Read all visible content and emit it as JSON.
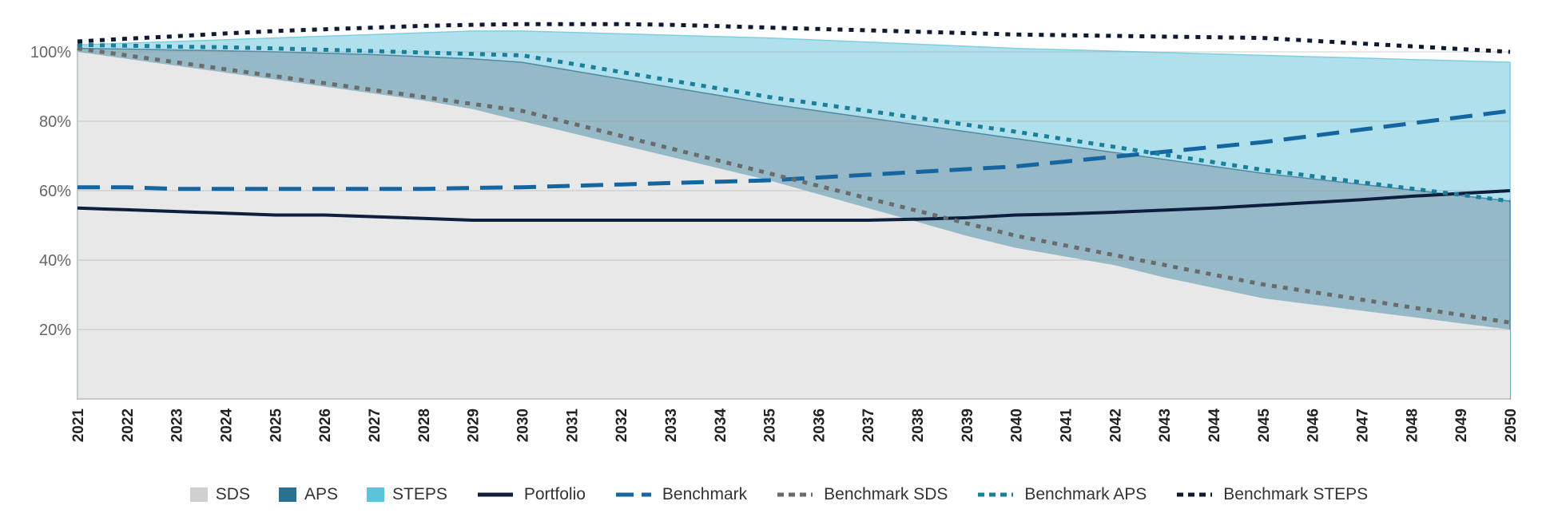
{
  "chart_data": {
    "type": "area",
    "title": "",
    "xlabel": "",
    "ylabel": "",
    "ylim": [
      0,
      110
    ],
    "grid": true,
    "legend_position": "bottom",
    "x": [
      2021,
      2022,
      2023,
      2024,
      2025,
      2026,
      2027,
      2028,
      2029,
      2030,
      2031,
      2032,
      2033,
      2034,
      2035,
      2036,
      2037,
      2038,
      2039,
      2040,
      2041,
      2042,
      2043,
      2044,
      2045,
      2046,
      2047,
      2048,
      2049,
      2050
    ],
    "x_tick_labels": [
      "2021",
      "2022",
      "2023",
      "2024",
      "2025",
      "2026",
      "2027",
      "2028",
      "2029",
      "2030",
      "2031",
      "2032",
      "2033",
      "2034",
      "2035",
      "2036",
      "2037",
      "2038",
      "2039",
      "2040",
      "2041",
      "2042",
      "2043",
      "2044",
      "2045",
      "2046",
      "2047",
      "2048",
      "2049",
      "2050"
    ],
    "y_ticks": [
      20,
      40,
      60,
      80,
      100
    ],
    "y_tick_labels": [
      "20%",
      "40%",
      "60%",
      "80%",
      "100%"
    ],
    "areas": [
      {
        "name": "STEPS",
        "color": "#b0e0ec",
        "swatch": "#5bc4d8",
        "values": [
          102,
          102.5,
          103,
          103.5,
          104,
          104.5,
          105,
          105.5,
          106,
          106,
          105.6,
          105.2,
          104.8,
          104.4,
          104,
          103.4,
          102.8,
          102.2,
          101.6,
          101,
          100.6,
          100.2,
          99.8,
          99.4,
          99,
          98.6,
          98.2,
          97.8,
          97.4,
          97
        ]
      },
      {
        "name": "APS",
        "color": "#96b9c8",
        "swatch": "#2a7090",
        "values": [
          101,
          100.8,
          100.5,
          100.3,
          100,
          99.6,
          99.2,
          98.6,
          98,
          97,
          94.6,
          92.2,
          89.8,
          87.4,
          85,
          83,
          81,
          79,
          77,
          75,
          73,
          71,
          69,
          67,
          65,
          63.4,
          61.8,
          60.2,
          58.6,
          57
        ]
      },
      {
        "name": "SDS",
        "color": "#e8e8e8",
        "swatch": "#d0d0d0",
        "values": [
          100,
          98,
          96,
          94,
          92,
          90,
          88,
          86,
          83.5,
          80,
          76.6,
          73.2,
          69.8,
          66.4,
          63,
          59,
          55,
          51,
          47,
          43.5,
          41,
          38.5,
          35,
          32,
          29,
          27.2,
          25.4,
          23.6,
          21.8,
          20
        ]
      }
    ],
    "lines": [
      {
        "name": "Portfolio",
        "color": "#0d1f3c",
        "dash": "solid",
        "values": [
          55,
          54.5,
          54,
          53.5,
          53,
          53,
          52.5,
          52,
          51.5,
          51.5,
          51.5,
          51.5,
          51.5,
          51.5,
          51.5,
          51.5,
          51.5,
          51.8,
          52.2,
          53,
          53.3,
          53.8,
          54.4,
          55,
          55.8,
          56.6,
          57.4,
          58.4,
          59.2,
          60
        ]
      },
      {
        "name": "Benchmark",
        "color": "#1565a0",
        "dash": "longdash",
        "values": [
          61,
          61,
          60.5,
          60.5,
          60.5,
          60.5,
          60.5,
          60.5,
          60.8,
          61,
          61.4,
          61.8,
          62.2,
          62.6,
          63,
          63.8,
          64.6,
          65.4,
          66.2,
          67,
          68.4,
          69.8,
          71.2,
          72.6,
          74,
          75.8,
          77.6,
          79.4,
          81.2,
          83
        ]
      },
      {
        "name": "Benchmark SDS",
        "color": "#6b6b6b",
        "dash": "dot",
        "values": [
          101,
          99,
          97,
          95,
          93,
          91,
          89,
          87,
          85,
          83,
          79.4,
          75.8,
          72.2,
          68.6,
          65,
          61.4,
          57.8,
          54.2,
          50.6,
          47,
          44.2,
          41.4,
          38.6,
          35.8,
          33,
          30.8,
          28.6,
          26.4,
          24.2,
          22
        ]
      },
      {
        "name": "Benchmark APS",
        "color": "#1a7f9a",
        "dash": "dot",
        "values": [
          102,
          101.8,
          101.5,
          101.3,
          101,
          100.6,
          100.2,
          99.8,
          99.4,
          99,
          96.6,
          94.2,
          91.8,
          89.4,
          87,
          85,
          83,
          81,
          79,
          77,
          74.8,
          72.6,
          70.4,
          68.2,
          66,
          64.2,
          62.4,
          60.6,
          58.8,
          57
        ]
      },
      {
        "name": "Benchmark STEPS",
        "color": "#0f1a30",
        "dash": "dot",
        "values": [
          103,
          103.8,
          104.5,
          105.3,
          106,
          106.5,
          107,
          107.5,
          107.8,
          108,
          108,
          108,
          107.8,
          107.4,
          107,
          106.6,
          106.2,
          105.8,
          105.4,
          105,
          104.8,
          104.6,
          104.4,
          104.2,
          104,
          103.2,
          102.4,
          101.6,
          100.8,
          100
        ]
      }
    ]
  },
  "legend": [
    {
      "label": "SDS",
      "kind": "swatch",
      "color": "#d0d0d0"
    },
    {
      "label": "APS",
      "kind": "swatch",
      "color": "#2a7090"
    },
    {
      "label": "STEPS",
      "kind": "swatch",
      "color": "#5bc4d8"
    },
    {
      "label": "Portfolio",
      "kind": "line",
      "color": "#0d1f3c",
      "dash": "solid"
    },
    {
      "label": "Benchmark",
      "kind": "line",
      "color": "#1565a0",
      "dash": "longdash"
    },
    {
      "label": "Benchmark SDS",
      "kind": "line",
      "color": "#6b6b6b",
      "dash": "dot"
    },
    {
      "label": "Benchmark APS",
      "kind": "line",
      "color": "#1a7f9a",
      "dash": "dot"
    },
    {
      "label": "Benchmark STEPS",
      "kind": "line",
      "color": "#0f1a30",
      "dash": "dot"
    }
  ]
}
